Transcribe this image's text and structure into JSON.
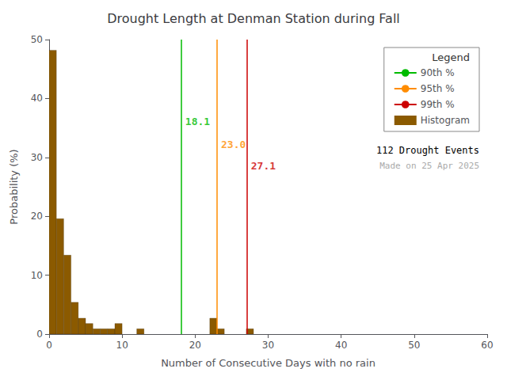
{
  "chart_data": {
    "type": "histogram",
    "title": "Drought Length at Denman Station during Fall",
    "xlabel": "Number of Consecutive Days with no rain",
    "ylabel": "Probability (%)",
    "name": "Histogram",
    "color": "#8B5A00",
    "bins": [
      0,
      1,
      2,
      3,
      4,
      5,
      6,
      7,
      8,
      9,
      10,
      11,
      12,
      13,
      14,
      15,
      16,
      17,
      18,
      19,
      20,
      21,
      22,
      23,
      24,
      25,
      26,
      27,
      28,
      29,
      30,
      31,
      32,
      33,
      34,
      35,
      36,
      37,
      38,
      39,
      40,
      41,
      42,
      43,
      44,
      45,
      46,
      47,
      48,
      49,
      50,
      51,
      52,
      53,
      54,
      55,
      56,
      57,
      58,
      59,
      60
    ],
    "counts": [
      48.2,
      19.6,
      13.4,
      5.4,
      2.7,
      1.8,
      0.9,
      0.9,
      0.9,
      1.8,
      0.0,
      0.0,
      0.9,
      0.0,
      0.0,
      0.0,
      0.0,
      0.0,
      0.0,
      0.0,
      0.0,
      0.0,
      2.7,
      0.9,
      0.0,
      0.0,
      0.0,
      0.9,
      0.0,
      0.0,
      0.0,
      0.0,
      0.0,
      0.0,
      0.0,
      0.0,
      0.0,
      0.0,
      0.0,
      0.0,
      0.0,
      0.0,
      0.0,
      0.0,
      0.0,
      0.0,
      0.0,
      0.0,
      0.0,
      0.0,
      0.0,
      0.0,
      0.0,
      0.0,
      0.0,
      0.0,
      0.0,
      0.0,
      0.0,
      0.0
    ],
    "xlim": [
      0,
      60
    ],
    "ylim": [
      0,
      50
    ],
    "xticks": [
      0,
      10,
      20,
      30,
      40,
      50,
      60
    ],
    "yticks": [
      0,
      10,
      20,
      30,
      40,
      50
    ],
    "grid": false,
    "legend": "upper right",
    "legend_title": "Legend",
    "lines": [
      {
        "name": "90th %",
        "x": 18.1,
        "color": "#00BB00"
      },
      {
        "name": "95th %",
        "x": 23.0,
        "color": "#FF8C00"
      },
      {
        "name": "99th %",
        "x": 27.1,
        "color": "#CC0000"
      }
    ],
    "annotations": [
      {
        "text": "18.1",
        "x": 18.1,
        "y": 37.0,
        "color": "#00BB00"
      },
      {
        "text": "23.0",
        "x": 23.0,
        "y": 33.0,
        "color": "#FF8C00"
      },
      {
        "text": "27.1",
        "x": 27.1,
        "y": 29.5,
        "color": "#CC0000"
      }
    ],
    "notes": [
      {
        "text": "112 Drought Events"
      },
      {
        "text": "Made on 25 Apr 2025",
        "color": "#aaaaaa"
      }
    ]
  }
}
